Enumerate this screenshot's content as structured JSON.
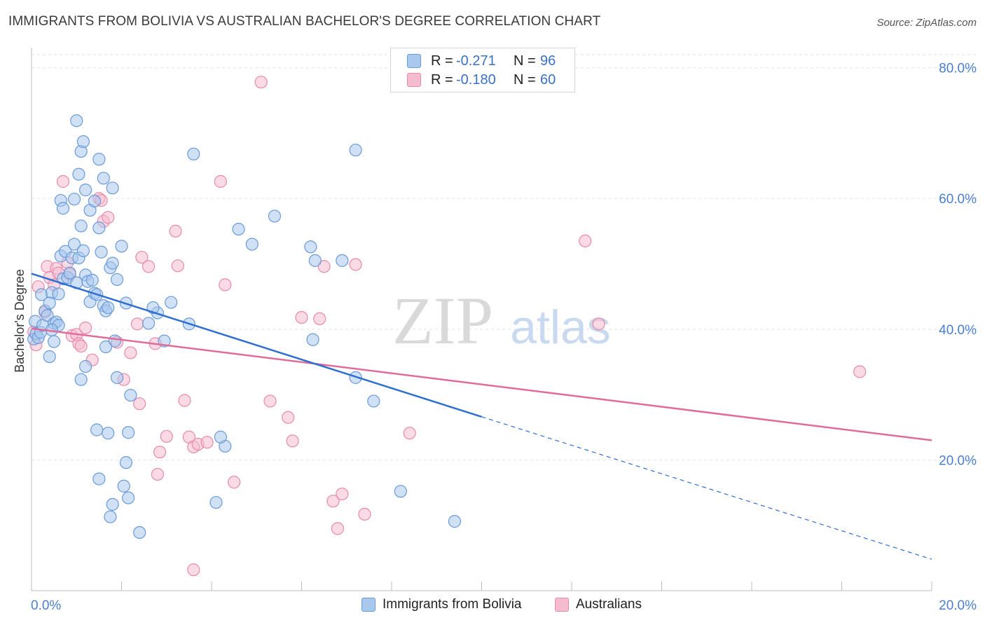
{
  "header": {
    "title": "IMMIGRANTS FROM BOLIVIA VS AUSTRALIAN BACHELOR'S DEGREE CORRELATION CHART",
    "source": "Source: ZipAtlas.com"
  },
  "watermark": {
    "zip": "ZIP",
    "atlas": "atlas"
  },
  "colors": {
    "blue_fill": "#a9c8ee",
    "blue_stroke": "#6a9ad8",
    "blue_line": "#2f6fd0",
    "pink_fill": "#f5bcd0",
    "pink_stroke": "#e88aa8",
    "pink_line": "#e06c98",
    "tick_text": "#4a7fd0",
    "grid": "#e3e3e3"
  },
  "legend_top": {
    "rows": [
      {
        "r_label": "R =",
        "r_value": "-0.271",
        "n_label": "N =",
        "n_value": "96"
      },
      {
        "r_label": "R =",
        "r_value": "-0.180",
        "n_label": "N =",
        "n_value": "60"
      }
    ]
  },
  "chart_data": {
    "type": "scatter",
    "title": "IMMIGRANTS FROM BOLIVIA VS AUSTRALIAN BACHELOR'S DEGREE CORRELATION CHART",
    "xlabel": "",
    "ylabel": "Bachelor's Degree",
    "xlim": [
      0,
      20
    ],
    "ylim": [
      0,
      82
    ],
    "x_tick_labels": [
      "0.0%",
      "20.0%"
    ],
    "y_tick_values": [
      20,
      40,
      60,
      80
    ],
    "y_tick_labels": [
      "20.0%",
      "40.0%",
      "60.0%",
      "80.0%"
    ],
    "grid": true,
    "legend_position": "bottom",
    "series": [
      {
        "name": "Immigrants from Bolivia",
        "color": "#a9c8ee",
        "points": [
          [
            0.05,
            38.5
          ],
          [
            0.1,
            39.3
          ],
          [
            0.15,
            38.7
          ],
          [
            0.2,
            39.5
          ],
          [
            0.08,
            41.2
          ],
          [
            0.25,
            40.6
          ],
          [
            0.3,
            42.8
          ],
          [
            0.35,
            42.1
          ],
          [
            0.22,
            45.3
          ],
          [
            0.45,
            45.6
          ],
          [
            0.4,
            44.0
          ],
          [
            0.5,
            40.9
          ],
          [
            0.55,
            41.1
          ],
          [
            0.6,
            45.4
          ],
          [
            0.65,
            51.2
          ],
          [
            0.7,
            47.7
          ],
          [
            0.75,
            51.9
          ],
          [
            0.8,
            47.9
          ],
          [
            0.85,
            48.6
          ],
          [
            0.9,
            50.9
          ],
          [
            0.95,
            53.0
          ],
          [
            1.0,
            47.1
          ],
          [
            1.05,
            50.9
          ],
          [
            1.1,
            55.8
          ],
          [
            1.15,
            52.0
          ],
          [
            1.2,
            48.3
          ],
          [
            1.25,
            47.3
          ],
          [
            1.3,
            44.2
          ],
          [
            1.35,
            47.5
          ],
          [
            1.4,
            45.5
          ],
          [
            1.45,
            45.3
          ],
          [
            1.5,
            55.5
          ],
          [
            1.55,
            51.8
          ],
          [
            1.6,
            43.6
          ],
          [
            1.65,
            42.8
          ],
          [
            1.7,
            43.3
          ],
          [
            1.75,
            49.4
          ],
          [
            1.8,
            50.1
          ],
          [
            1.85,
            38.2
          ],
          [
            1.9,
            47.6
          ],
          [
            2.0,
            52.7
          ],
          [
            2.1,
            44.0
          ],
          [
            0.65,
            59.7
          ],
          [
            0.7,
            58.5
          ],
          [
            0.95,
            59.9
          ],
          [
            1.1,
            67.2
          ],
          [
            1.15,
            68.7
          ],
          [
            1.0,
            71.9
          ],
          [
            1.05,
            63.7
          ],
          [
            1.2,
            61.3
          ],
          [
            1.3,
            58.2
          ],
          [
            1.4,
            59.6
          ],
          [
            1.5,
            66.0
          ],
          [
            1.6,
            63.1
          ],
          [
            1.8,
            61.6
          ],
          [
            0.6,
            40.6
          ],
          [
            0.45,
            39.9
          ],
          [
            0.5,
            38.1
          ],
          [
            0.4,
            35.8
          ],
          [
            1.2,
            34.3
          ],
          [
            1.1,
            32.3
          ],
          [
            1.65,
            37.3
          ],
          [
            1.9,
            32.6
          ],
          [
            2.2,
            29.9
          ],
          [
            1.7,
            24.1
          ],
          [
            2.15,
            24.2
          ],
          [
            2.1,
            19.6
          ],
          [
            2.05,
            16.0
          ],
          [
            2.15,
            14.2
          ],
          [
            1.45,
            24.6
          ],
          [
            1.5,
            17.1
          ],
          [
            1.8,
            13.2
          ],
          [
            1.75,
            11.3
          ],
          [
            2.4,
            8.9
          ],
          [
            4.1,
            13.5
          ],
          [
            4.3,
            22.1
          ],
          [
            4.2,
            23.5
          ],
          [
            3.6,
            66.8
          ],
          [
            4.6,
            55.3
          ],
          [
            4.9,
            53.0
          ],
          [
            5.4,
            57.3
          ],
          [
            6.2,
            52.6
          ],
          [
            6.25,
            38.4
          ],
          [
            6.3,
            50.5
          ],
          [
            6.9,
            50.5
          ],
          [
            7.2,
            67.4
          ],
          [
            7.2,
            32.6
          ],
          [
            7.6,
            29.0
          ],
          [
            8.2,
            15.2
          ],
          [
            9.4,
            10.6
          ],
          [
            3.1,
            44.1
          ],
          [
            2.95,
            38.2
          ],
          [
            2.6,
            40.9
          ],
          [
            2.8,
            42.5
          ],
          [
            2.7,
            43.3
          ],
          [
            3.5,
            40.8
          ]
        ]
      },
      {
        "name": "Australians",
        "color": "#f5bcd0",
        "points": [
          [
            0.05,
            39.6
          ],
          [
            0.1,
            37.6
          ],
          [
            0.15,
            46.5
          ],
          [
            0.3,
            42.6
          ],
          [
            0.35,
            49.6
          ],
          [
            0.4,
            47.9
          ],
          [
            0.5,
            46.8
          ],
          [
            0.55,
            49.3
          ],
          [
            0.6,
            48.6
          ],
          [
            0.7,
            62.6
          ],
          [
            0.8,
            50.2
          ],
          [
            0.85,
            48.4
          ],
          [
            0.9,
            39.0
          ],
          [
            1.0,
            39.2
          ],
          [
            1.05,
            37.8
          ],
          [
            1.1,
            37.4
          ],
          [
            1.2,
            40.2
          ],
          [
            1.35,
            35.3
          ],
          [
            1.5,
            60.0
          ],
          [
            1.55,
            59.7
          ],
          [
            1.6,
            56.5
          ],
          [
            1.7,
            57.1
          ],
          [
            1.9,
            38.0
          ],
          [
            2.05,
            32.3
          ],
          [
            2.2,
            36.4
          ],
          [
            2.35,
            40.8
          ],
          [
            2.45,
            51.0
          ],
          [
            2.6,
            49.6
          ],
          [
            2.75,
            37.8
          ],
          [
            3.2,
            55.0
          ],
          [
            3.25,
            49.7
          ],
          [
            3.4,
            29.1
          ],
          [
            3.5,
            23.5
          ],
          [
            3.6,
            22.0
          ],
          [
            3.7,
            22.4
          ],
          [
            3.9,
            22.7
          ],
          [
            4.2,
            62.6
          ],
          [
            4.3,
            46.8
          ],
          [
            5.1,
            77.8
          ],
          [
            5.3,
            29.0
          ],
          [
            5.7,
            26.5
          ],
          [
            5.8,
            22.9
          ],
          [
            6.0,
            41.8
          ],
          [
            6.4,
            41.6
          ],
          [
            6.5,
            49.6
          ],
          [
            6.7,
            13.7
          ],
          [
            6.8,
            9.5
          ],
          [
            6.9,
            14.8
          ],
          [
            7.2,
            49.9
          ],
          [
            7.4,
            11.7
          ],
          [
            8.4,
            24.1
          ],
          [
            12.3,
            53.5
          ],
          [
            12.6,
            40.8
          ],
          [
            18.4,
            33.5
          ],
          [
            2.4,
            28.6
          ],
          [
            2.8,
            17.8
          ],
          [
            2.85,
            21.2
          ],
          [
            3.0,
            23.6
          ],
          [
            3.6,
            3.2
          ],
          [
            4.5,
            16.6
          ]
        ]
      }
    ],
    "trend_lines": [
      {
        "series": "Immigrants from Bolivia",
        "x0": 0.0,
        "y0": 48.5,
        "x1": 10.0,
        "y1": 26.6,
        "dashed_to_x": 20.0,
        "dashed_to_y": 4.8
      },
      {
        "series": "Australians",
        "x0": 0.0,
        "y0": 40.1,
        "x1": 20.0,
        "y1": 23.0
      }
    ]
  }
}
